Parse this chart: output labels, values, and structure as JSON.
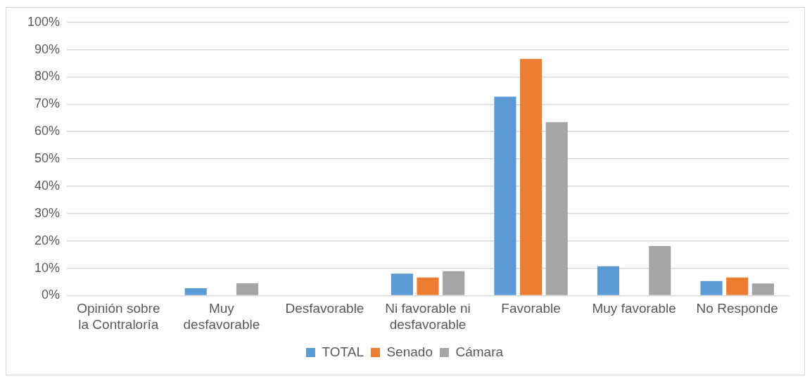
{
  "chart_data": {
    "type": "bar",
    "categories": [
      "Opinión sobre la Contraloría",
      "Muy desfavorable",
      "Desfavorable",
      "Ni favorable ni desfavorable",
      "Favorable",
      "Muy favorable",
      "No Responde"
    ],
    "series": [
      {
        "name": "TOTAL",
        "color": "#5b9bd5",
        "values": [
          null,
          2.7,
          0,
          8.0,
          72.8,
          10.7,
          5.3
        ]
      },
      {
        "name": "Senado",
        "color": "#ed7d31",
        "values": [
          null,
          0,
          0,
          6.6,
          86.6,
          0,
          6.6
        ]
      },
      {
        "name": "Cámara",
        "color": "#a5a5a5",
        "values": [
          null,
          4.5,
          0,
          8.9,
          63.5,
          18.1,
          4.4
        ]
      }
    ],
    "ylim": [
      0,
      100
    ],
    "yticks": [
      {
        "value": 0,
        "label": "0%"
      },
      {
        "value": 10,
        "label": "10%"
      },
      {
        "value": 20,
        "label": "20%"
      },
      {
        "value": 30,
        "label": "30%"
      },
      {
        "value": 40,
        "label": "40%"
      },
      {
        "value": 50,
        "label": "50%"
      },
      {
        "value": 60,
        "label": "60%"
      },
      {
        "value": 70,
        "label": "70%"
      },
      {
        "value": 80,
        "label": "80%"
      },
      {
        "value": 90,
        "label": "90%"
      },
      {
        "value": 100,
        "label": "100%"
      }
    ],
    "grid": "y",
    "legend": "bottom"
  }
}
